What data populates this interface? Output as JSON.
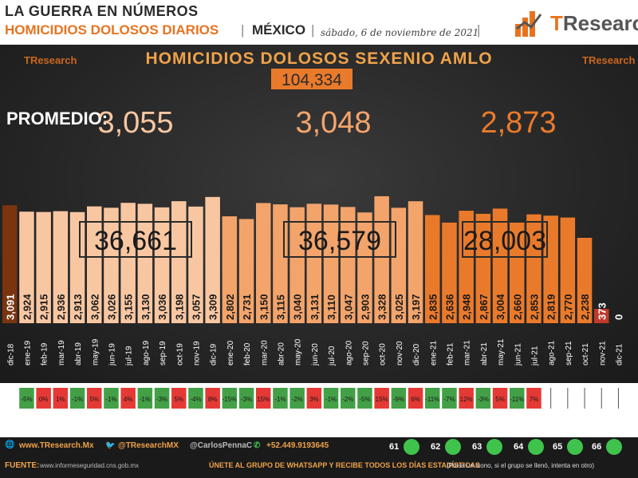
{
  "header": {
    "line1": "LA GUERRA EN NÚMEROS",
    "line2": "HOMICIDIOS DOLOSOS DIARIOS",
    "country": "MÉXICO",
    "date": "sábado, 6 de noviembre de 2021",
    "logo_text_prefix": "T",
    "logo_text_rest": "Research"
  },
  "chart_data": {
    "type": "bar",
    "title": "HOMICIDIOS DOLOSOS SEXENIO AMLO",
    "total": "104,334",
    "promedio_label": "PROMEDIO:",
    "averages": [
      "3,055",
      "3,048",
      "2,873"
    ],
    "year_totals": [
      "36,661",
      "36,579",
      "28,003"
    ],
    "watermark": "TResearch",
    "categories": [
      "dic-18",
      "ene-19",
      "feb-19",
      "mar-19",
      "abr-19",
      "may-19",
      "jun-19",
      "jul-19",
      "ago-19",
      "sep-19",
      "oct-19",
      "nov-19",
      "dic-19",
      "ene-20",
      "feb-20",
      "mar-20",
      "abr-20",
      "may-20",
      "jun-20",
      "jul-20",
      "ago-20",
      "sep-20",
      "oct-20",
      "nov-20",
      "dic-20",
      "ene-21",
      "feb-21",
      "mar-21",
      "abr-21",
      "may-21",
      "jun-21",
      "jul-21",
      "ago-21",
      "sep-21",
      "oct-21",
      "nov-21",
      "dic-21"
    ],
    "values": [
      3091,
      2924,
      2915,
      2936,
      2913,
      3062,
      3026,
      3155,
      3130,
      3036,
      3198,
      3057,
      3309,
      2802,
      2731,
      3150,
      3115,
      3040,
      3131,
      3110,
      3047,
      2903,
      3328,
      3025,
      3197,
      2835,
      2636,
      2948,
      2867,
      3004,
      2660,
      2853,
      2819,
      2770,
      2238,
      373,
      0
    ],
    "value_labels": [
      "3,091",
      "2,924",
      "2,915",
      "2,936",
      "2,913",
      "3,062",
      "3,026",
      "3,155",
      "3,130",
      "3,036",
      "3,198",
      "3,057",
      "3,309",
      "2,802",
      "2,731",
      "3,150",
      "3,115",
      "3,040",
      "3,131",
      "3,110",
      "3,047",
      "2,903",
      "3,328",
      "3,025",
      "3,197",
      "2,835",
      "2,636",
      "2,948",
      "2,867",
      "3,004",
      "2,660",
      "2,853",
      "2,819",
      "2,770",
      "2,238",
      "373",
      "0"
    ],
    "pct_change": [
      "",
      "-5%",
      "0%",
      "1%",
      "-1%",
      "5%",
      "-1%",
      "4%",
      "-1%",
      "-3%",
      "5%",
      "-4%",
      "8%",
      "-15%",
      "-3%",
      "15%",
      "-1%",
      "-2%",
      "3%",
      "-1%",
      "-2%",
      "-5%",
      "15%",
      "-9%",
      "6%",
      "-11%",
      "-7%",
      "12%",
      "-3%",
      "5%",
      "-11%",
      "7%",
      "",
      "",
      "",
      "",
      ""
    ],
    "ylim": [
      0,
      3500
    ],
    "colors": {
      "dic-18": "#7a3510",
      "y2019": "#f8c7a2",
      "y2020": "#f3a46b",
      "y2021": "#ea7a2b",
      "nov-21": "#c0392b",
      "pct_positive": "#e53935",
      "pct_negative": "#43a047",
      "pct_zero": "#e53935",
      "title": "#f0a24a",
      "avg1": "#f8c7a2",
      "avg2": "#f3a46b",
      "avg3": "#ea7a2b"
    }
  },
  "footer": {
    "web": "www.TResearch.Mx",
    "twitter": "@TResearchMX",
    "author": "@CarlosPennaC",
    "phone": "+52.449.9193645",
    "source_label": "FUENTE:",
    "source": "www.informeseguridad.cns.gob.mx",
    "cta": "ÚNETE AL GRUPO DE WHATSAPP Y RECIBE TODOS LOS DÍAS ESTADÍSTICAS",
    "cta_note": "(Pulsa un ícono, si el grupo se llenó, intenta en otro)",
    "groups": [
      "61",
      "62",
      "63",
      "64",
      "65",
      "66"
    ]
  }
}
